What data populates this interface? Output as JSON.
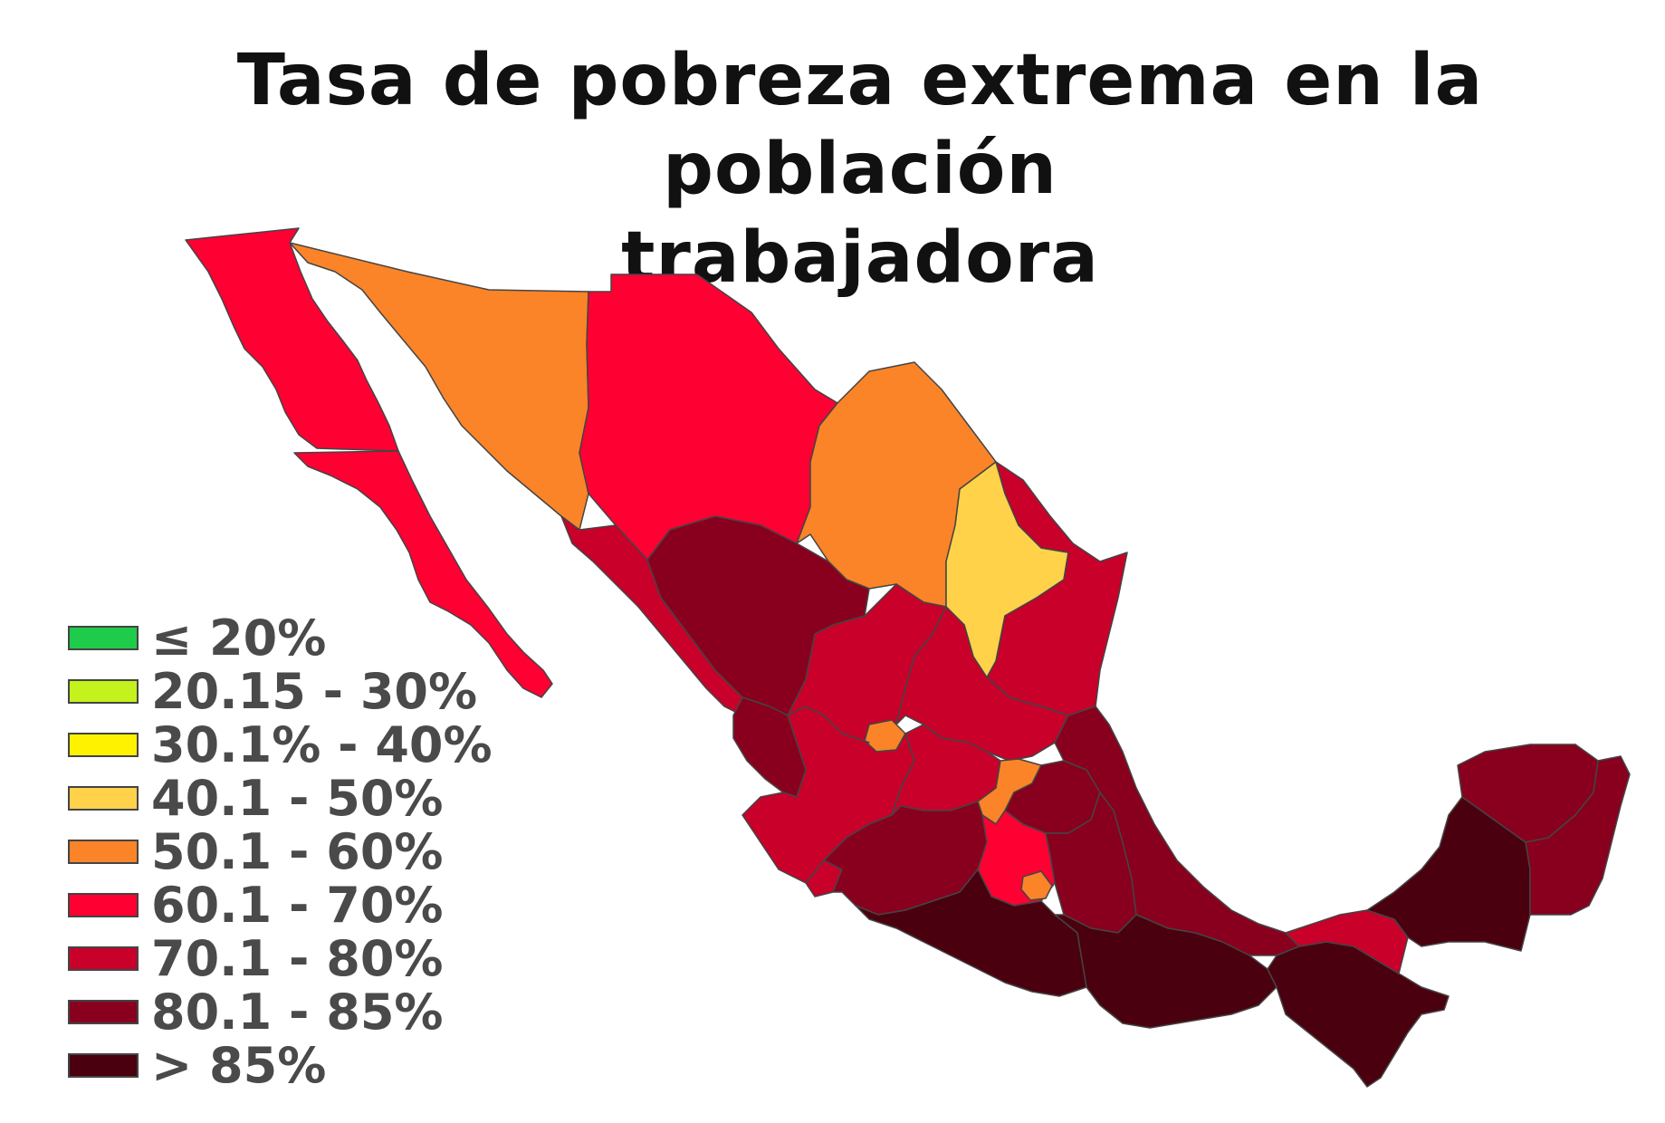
{
  "title_line1": "Tasa de pobreza extrema en la población",
  "title_line2": "trabajadora",
  "legend": [
    {
      "label": "≤ 20%",
      "color": "#1ecb4a"
    },
    {
      "label": "20.15 - 30%",
      "color": "#c4f21c"
    },
    {
      "label": "30.1% - 40%",
      "color": "#fff200"
    },
    {
      "label": "40.1 - 50%",
      "color": "#ffd24a"
    },
    {
      "label": "50.1 - 60%",
      "color": "#fb8428"
    },
    {
      "label": "60.1 - 70%",
      "color": "#ff0033"
    },
    {
      "label": "70.1 - 80%",
      "color": "#c8002a"
    },
    {
      "label": "80.1 - 85%",
      "color": "#88001d"
    },
    {
      "label": "> 85%",
      "color": "#4a000f"
    }
  ],
  "regions": [
    {
      "name": "baja-california",
      "class": "60.1 - 70%"
    },
    {
      "name": "baja-california-sur",
      "class": "60.1 - 70%"
    },
    {
      "name": "sonora",
      "class": "50.1 - 60%"
    },
    {
      "name": "chihuahua",
      "class": "60.1 - 70%"
    },
    {
      "name": "coahuila",
      "class": "50.1 - 60%"
    },
    {
      "name": "nuevo-leon",
      "class": "40.1 - 50%"
    },
    {
      "name": "tamaulipas",
      "class": "70.1 - 80%"
    },
    {
      "name": "sinaloa",
      "class": "70.1 - 80%"
    },
    {
      "name": "durango",
      "class": "80.1 - 85%"
    },
    {
      "name": "zacatecas",
      "class": "70.1 - 80%"
    },
    {
      "name": "san-luis-potosi",
      "class": "70.1 - 80%"
    },
    {
      "name": "nayarit",
      "class": "80.1 - 85%"
    },
    {
      "name": "aguascalientes",
      "class": "50.1 - 60%"
    },
    {
      "name": "jalisco",
      "class": "70.1 - 80%"
    },
    {
      "name": "guanajuato",
      "class": "70.1 - 80%"
    },
    {
      "name": "queretaro",
      "class": "50.1 - 60%"
    },
    {
      "name": "hidalgo",
      "class": "80.1 - 85%"
    },
    {
      "name": "colima",
      "class": "70.1 - 80%"
    },
    {
      "name": "michoacan",
      "class": "80.1 - 85%"
    },
    {
      "name": "estado-de-mexico",
      "class": "60.1 - 70%"
    },
    {
      "name": "ciudad-de-mexico",
      "class": "50.1 - 60%"
    },
    {
      "name": "tlaxcala",
      "class": "> 85%"
    },
    {
      "name": "puebla",
      "class": "80.1 - 85%"
    },
    {
      "name": "veracruz",
      "class": "80.1 - 85%"
    },
    {
      "name": "guerrero",
      "class": "> 85%"
    },
    {
      "name": "oaxaca",
      "class": "> 85%"
    },
    {
      "name": "chiapas",
      "class": "> 85%"
    },
    {
      "name": "tabasco",
      "class": "70.1 - 80%"
    },
    {
      "name": "campeche",
      "class": "> 85%"
    },
    {
      "name": "yucatan",
      "class": "80.1 - 85%"
    },
    {
      "name": "quintana-roo",
      "class": "80.1 - 85%"
    }
  ]
}
